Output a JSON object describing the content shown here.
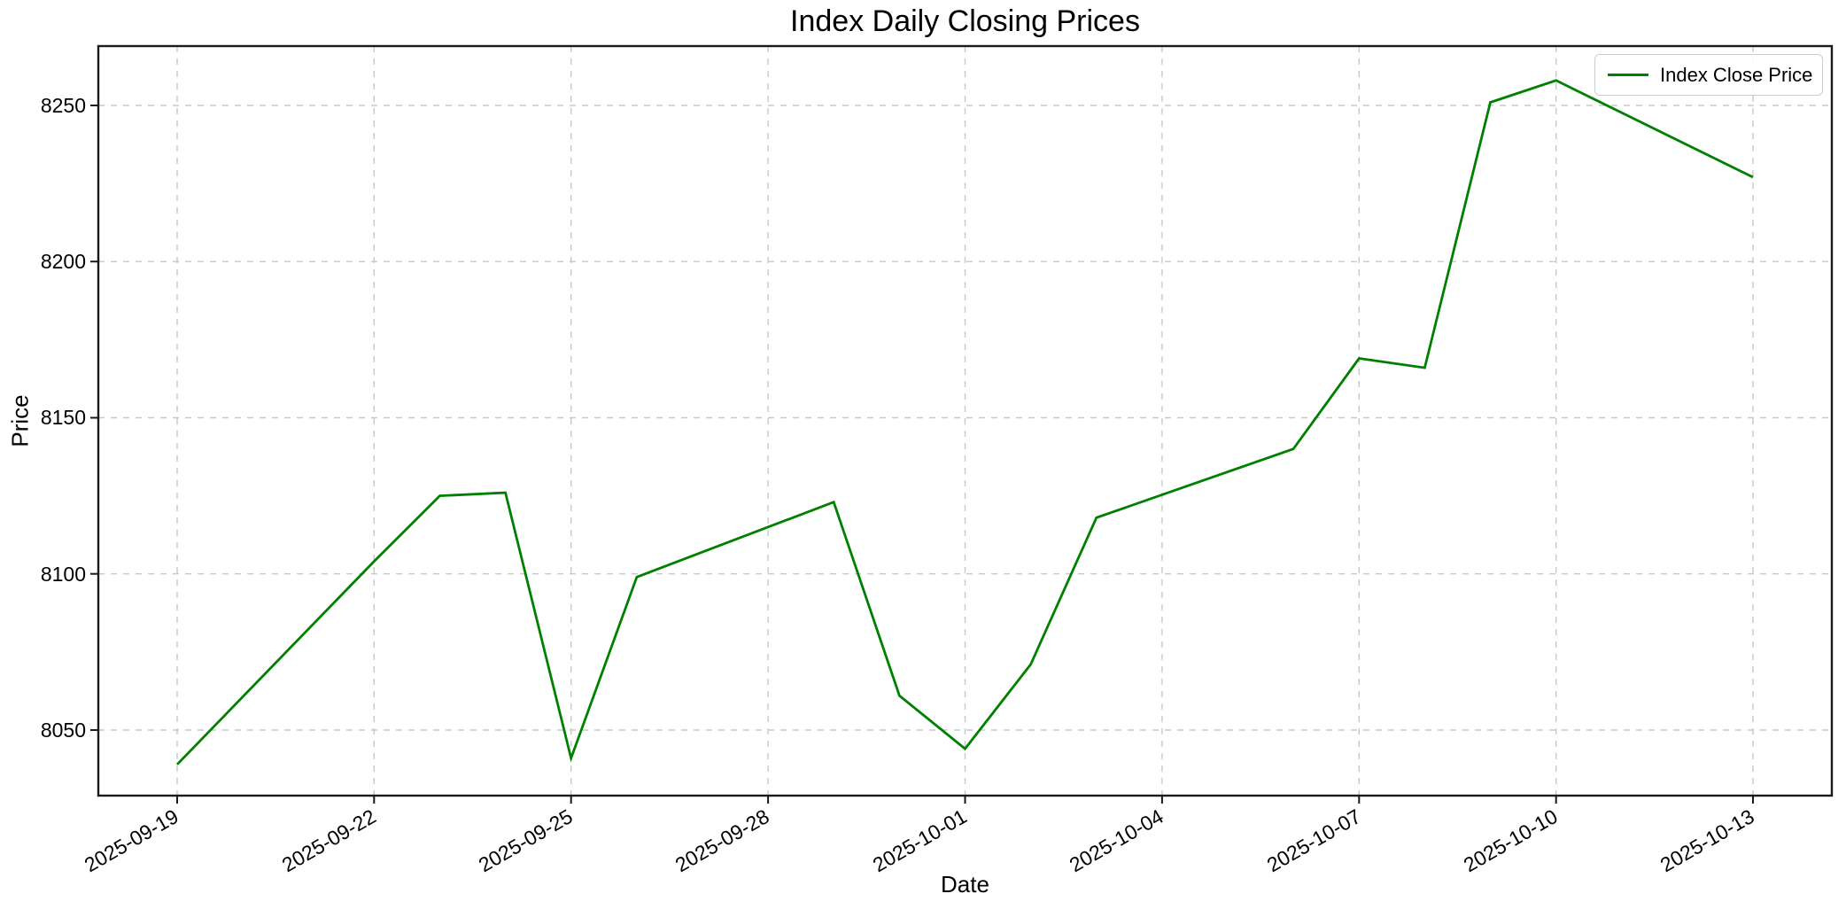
{
  "figure": {
    "title": "Index Daily Closing Prices",
    "xlabel": "Date",
    "ylabel": "Price"
  },
  "legend": {
    "position": "upper right",
    "items": [
      {
        "label": "Index Close Price",
        "color": "#008000"
      }
    ]
  },
  "colors": {
    "line": "#008000",
    "grid": "#c8c8c8",
    "spine": "#1a1a1a",
    "text": "#000000",
    "legend_border": "#cccccc",
    "background": "#ffffff"
  },
  "chart_data": {
    "type": "line",
    "title": "Index Daily Closing Prices",
    "xlabel": "Date",
    "ylabel": "Price",
    "legend": [
      "Index Close Price"
    ],
    "legend_position": "upper right",
    "grid": true,
    "grid_style": "dashed",
    "line_color": "#008000",
    "x": [
      "2025-09-19",
      "2025-09-22",
      "2025-09-23",
      "2025-09-24",
      "2025-09-25",
      "2025-09-26",
      "2025-09-29",
      "2025-09-30",
      "2025-10-01",
      "2025-10-02",
      "2025-10-03",
      "2025-10-06",
      "2025-10-07",
      "2025-10-08",
      "2025-10-09",
      "2025-10-10",
      "2025-10-13"
    ],
    "series": [
      {
        "name": "Index Close Price",
        "values": [
          8039,
          8104,
          8125,
          8126,
          8041,
          8099,
          8123,
          8061,
          8044,
          8071,
          8118,
          8140,
          8169,
          8166,
          8251,
          8258,
          8227
        ]
      }
    ],
    "xticks": [
      "2025-09-19",
      "2025-09-22",
      "2025-09-25",
      "2025-09-28",
      "2025-10-01",
      "2025-10-04",
      "2025-10-07",
      "2025-10-10",
      "2025-10-13"
    ],
    "yticks": [
      8050,
      8100,
      8150,
      8200,
      8250
    ],
    "ylim": [
      8029,
      8269
    ],
    "xlim_days_from_first_point": [
      -1.2,
      25.2
    ]
  }
}
